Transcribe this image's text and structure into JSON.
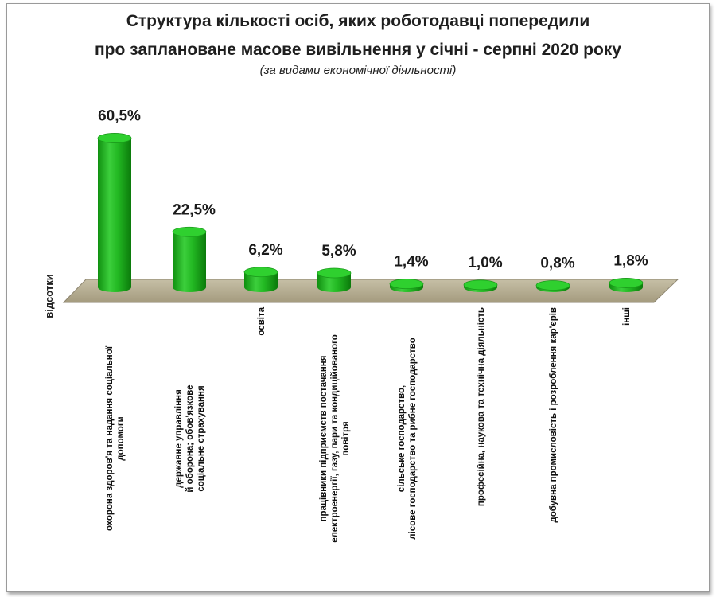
{
  "chart_data": {
    "type": "bar",
    "title_line1": "Структура кількості осіб, яких роботодавці попередили",
    "title_line2": "про  заплановане масове вивільнення у січні - серпні 2020 року",
    "subtitle": "(за видами економічної діяльності)",
    "ylabel": "відсотки",
    "value_labels": [
      "60,5%",
      "22,5%",
      "6,2%",
      "5,8%",
      "1,4%",
      "1,0%",
      "0,8%",
      "1,8%"
    ],
    "values": [
      60.5,
      22.5,
      6.2,
      5.8,
      1.4,
      1.0,
      0.8,
      1.8
    ],
    "categories": [
      [
        "охорона здоров'я та надання соціальної",
        "допомоги"
      ],
      [
        "державне управління",
        "й оборона; обов'язкове",
        "соціальне страхування"
      ],
      [
        "освіта"
      ],
      [
        "працівники підприємств постачання",
        "електроенергії, газу, пари та кондиційованого",
        "повітря"
      ],
      [
        "сільське господарство,",
        "лісове господарство  та рибне господарство"
      ],
      [
        "професійна, наукова та технічна діяльність"
      ],
      [
        "добувна промисловість і розроблення кар'єрів"
      ],
      [
        "інші"
      ]
    ],
    "bar_color": "#1fb51f",
    "floor_color": "#b3ab91",
    "ylim": [
      0,
      65
    ]
  }
}
